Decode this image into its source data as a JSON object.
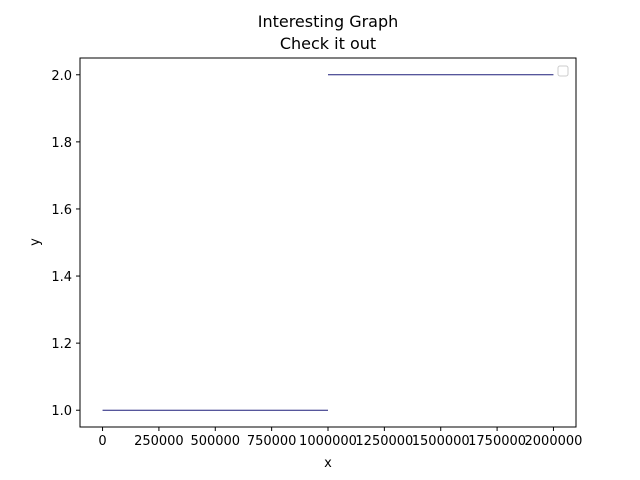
{
  "chart_data": {
    "type": "line",
    "title": "Interesting Graph",
    "subtitle": "Check it out",
    "xlabel": "x",
    "ylabel": "y",
    "xlim": [
      -100000,
      2100000
    ],
    "ylim": [
      0.95,
      2.05
    ],
    "xticks": [
      0,
      250000,
      500000,
      750000,
      1000000,
      1250000,
      1500000,
      1750000,
      2000000
    ],
    "xtick_labels": [
      "0",
      "250000",
      "500000",
      "750000",
      "1000000",
      "1250000",
      "1500000",
      "1750000",
      "2000000"
    ],
    "yticks": [
      1.0,
      1.2,
      1.4,
      1.6,
      1.8,
      2.0
    ],
    "ytick_labels": [
      "1.0",
      "1.2",
      "1.4",
      "1.6",
      "1.8",
      "2.0"
    ],
    "grid": false,
    "legend": {
      "placement": "top-right",
      "entries": []
    },
    "series": [
      {
        "x": [
          0,
          1000000
        ],
        "y": [
          1.0,
          1.0
        ],
        "color": "#1f1f7a"
      },
      {
        "x": [
          1000000,
          2000000
        ],
        "y": [
          2.0,
          2.0
        ],
        "color": "#1f1f7a"
      }
    ]
  }
}
